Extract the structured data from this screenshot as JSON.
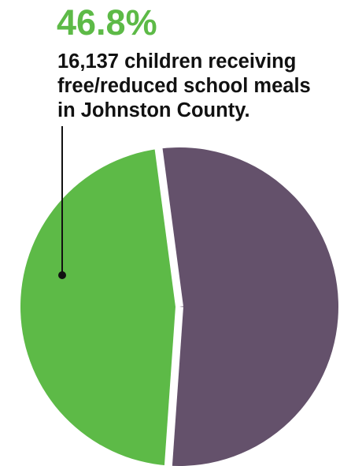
{
  "chart_data": {
    "type": "pie",
    "title": "",
    "series": [
      {
        "values": [
          46.8,
          53.2
        ],
        "colors": [
          "#5dba47",
          "#64516b"
        ]
      }
    ],
    "annotation": {
      "value_label": "46.8%",
      "text_lines": [
        "16,137 children receiving",
        "free/reduced school meals",
        "in Johnston County."
      ],
      "value_color": "#5dba47",
      "text_color": "#111111",
      "leader_color": "#111111"
    },
    "separator_color": "#ffffff"
  }
}
